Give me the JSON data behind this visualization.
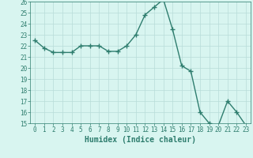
{
  "xlabel": "Humidex (Indice chaleur)",
  "x_values": [
    0,
    1,
    2,
    3,
    4,
    5,
    6,
    7,
    8,
    9,
    10,
    11,
    12,
    13,
    14,
    15,
    16,
    17,
    18,
    19,
    20,
    21,
    22,
    23
  ],
  "y_values": [
    22.5,
    21.8,
    21.4,
    21.4,
    21.4,
    22.0,
    22.0,
    22.0,
    21.5,
    21.5,
    22.0,
    23.0,
    24.8,
    25.5,
    26.2,
    23.5,
    20.2,
    19.7,
    16.0,
    15.0,
    14.8,
    17.0,
    16.0,
    14.8
  ],
  "line_color": "#2e7d6e",
  "marker": "+",
  "marker_size": 4,
  "marker_linewidth": 1.0,
  "bg_color": "#d8f5f0",
  "grid_color": "#b8dcd8",
  "ylim": [
    15,
    26
  ],
  "xlim": [
    -0.5,
    23.5
  ],
  "yticks": [
    15,
    16,
    17,
    18,
    19,
    20,
    21,
    22,
    23,
    24,
    25,
    26
  ],
  "xticks": [
    0,
    1,
    2,
    3,
    4,
    5,
    6,
    7,
    8,
    9,
    10,
    11,
    12,
    13,
    14,
    15,
    16,
    17,
    18,
    19,
    20,
    21,
    22,
    23
  ],
  "tick_label_fontsize": 5.5,
  "xlabel_fontsize": 7,
  "axis_color": "#2e7d6e",
  "linewidth": 1.0
}
